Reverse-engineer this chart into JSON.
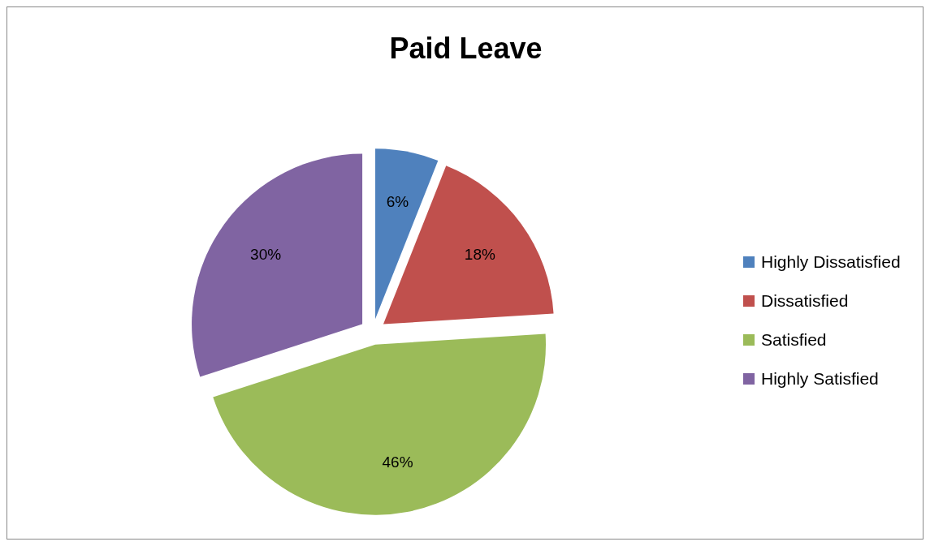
{
  "chart_data": {
    "type": "pie",
    "title": "Paid Leave",
    "categories": [
      "Highly Dissatisfied",
      "Dissatisfied",
      "Satisfied",
      "Highly Satisfied"
    ],
    "values": [
      6,
      18,
      46,
      30
    ],
    "value_labels": [
      "6%",
      "18%",
      "46%",
      "30%"
    ],
    "colors": [
      "#4f81bd",
      "#c0504d",
      "#9bbb59",
      "#8064a2"
    ],
    "data_labels": true,
    "legend": "right"
  }
}
